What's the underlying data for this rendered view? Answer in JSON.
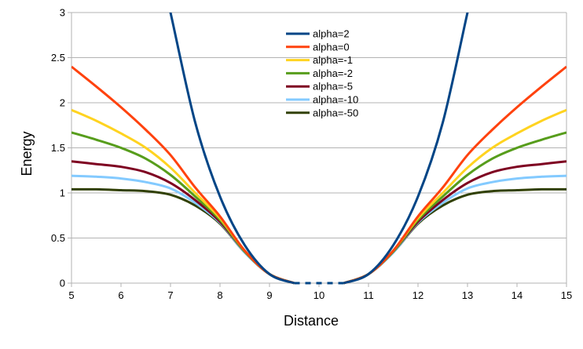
{
  "chart_data": {
    "type": "line",
    "title": "",
    "xlabel": "Distance",
    "ylabel": "Energy",
    "xlim": [
      5,
      15
    ],
    "ylim": [
      0,
      3
    ],
    "x_ticks": [
      5,
      6,
      7,
      8,
      9,
      10,
      11,
      12,
      13,
      14,
      15
    ],
    "y_ticks": [
      0,
      0.5,
      1,
      1.5,
      2,
      2.5,
      3
    ],
    "x_tick_labels": [
      "5",
      "6",
      "7",
      "8",
      "9",
      "10",
      "11",
      "12",
      "13",
      "14",
      "15"
    ],
    "y_tick_labels": [
      "0",
      "0.5",
      "1",
      "1.5",
      "2",
      "2.5",
      "3"
    ],
    "grid": "horizontal",
    "legend_position": "top-center",
    "x": [
      5,
      5.5,
      6,
      6.5,
      7,
      7.5,
      8,
      8.5,
      9,
      9.5,
      10,
      10.5,
      11,
      11.5,
      12,
      12.5,
      13,
      13.5,
      14,
      14.5,
      15
    ],
    "series": [
      {
        "name": "alpha=2",
        "color": "#004586",
        "dashed_center": true,
        "values": [
          null,
          null,
          null,
          null,
          3.0,
          1.78,
          0.96,
          0.42,
          0.1,
          0.0,
          0.0,
          0.0,
          0.1,
          0.42,
          0.96,
          1.78,
          3.0,
          null,
          null,
          null,
          null
        ]
      },
      {
        "name": "alpha=0",
        "color": "#ff420e",
        "values": [
          2.4,
          2.18,
          1.95,
          1.7,
          1.42,
          1.06,
          0.74,
          0.36,
          0.1,
          0.0,
          0.0,
          0.0,
          0.1,
          0.36,
          0.74,
          1.06,
          1.42,
          1.7,
          1.95,
          2.18,
          2.4
        ]
      },
      {
        "name": "alpha=-1",
        "color": "#ffd320",
        "values": [
          1.92,
          1.8,
          1.66,
          1.5,
          1.28,
          1.0,
          0.72,
          0.36,
          0.1,
          0.0,
          0.0,
          0.0,
          0.1,
          0.36,
          0.72,
          1.0,
          1.28,
          1.5,
          1.66,
          1.8,
          1.92
        ]
      },
      {
        "name": "alpha=-2",
        "color": "#579d1c",
        "values": [
          1.67,
          1.59,
          1.5,
          1.38,
          1.2,
          0.96,
          0.7,
          0.35,
          0.1,
          0.0,
          0.0,
          0.0,
          0.1,
          0.35,
          0.7,
          0.96,
          1.2,
          1.38,
          1.5,
          1.59,
          1.67
        ]
      },
      {
        "name": "alpha=-5",
        "color": "#7e0021",
        "values": [
          1.35,
          1.32,
          1.29,
          1.23,
          1.11,
          0.92,
          0.68,
          0.35,
          0.1,
          0.0,
          0.0,
          0.0,
          0.1,
          0.35,
          0.68,
          0.92,
          1.11,
          1.23,
          1.29,
          1.32,
          1.35
        ]
      },
      {
        "name": "alpha=-10",
        "color": "#83caff",
        "values": [
          1.19,
          1.18,
          1.16,
          1.12,
          1.05,
          0.89,
          0.67,
          0.34,
          0.1,
          0.0,
          0.0,
          0.0,
          0.1,
          0.34,
          0.67,
          0.89,
          1.05,
          1.12,
          1.16,
          1.18,
          1.19
        ]
      },
      {
        "name": "alpha=-50",
        "color": "#314004",
        "values": [
          1.04,
          1.04,
          1.03,
          1.02,
          0.98,
          0.86,
          0.66,
          0.34,
          0.1,
          0.0,
          0.0,
          0.0,
          0.1,
          0.34,
          0.66,
          0.86,
          0.98,
          1.02,
          1.03,
          1.04,
          1.04
        ]
      }
    ]
  }
}
